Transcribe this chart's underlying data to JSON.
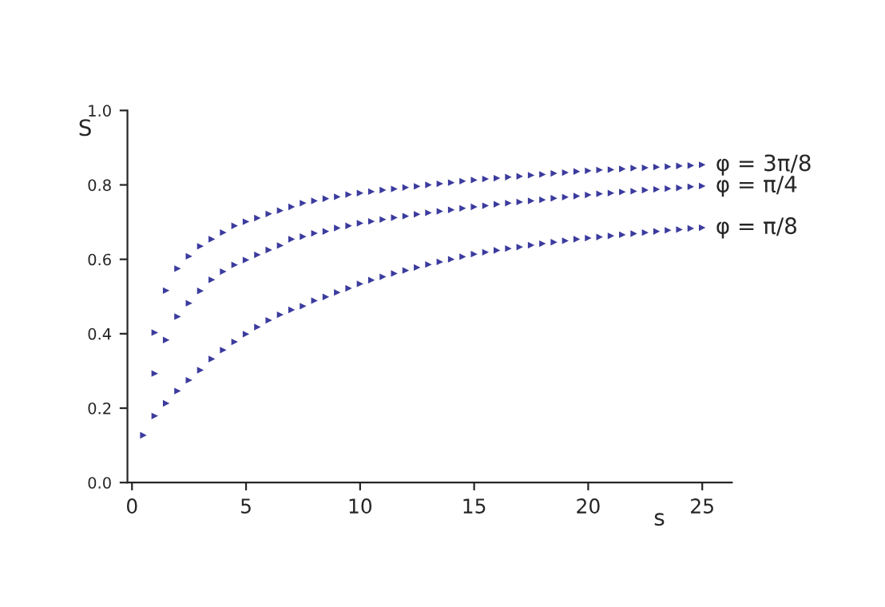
{
  "chart_data": {
    "type": "scatter",
    "xlabel": "s",
    "ylabel": "S",
    "marker": "triangle",
    "grid": false,
    "legend": false,
    "xlim": [
      -0.2,
      26.3
    ],
    "xticks": [
      0,
      5,
      10,
      15,
      20,
      25
    ],
    "ylim": [
      0,
      1.0
    ],
    "yticks": [
      {
        "value": 0,
        "label": "0.0"
      },
      {
        "value": 0.2,
        "label": "0.2"
      },
      {
        "value": 0.4,
        "label": "0.4"
      },
      {
        "value": 0.6,
        "label": "0.6"
      },
      {
        "value": 0.8,
        "label": "0.8"
      },
      {
        "value": 1.0,
        "label": "1.0"
      }
    ],
    "series": [
      {
        "name": "φ = 3π/8",
        "color": "#3b3b9e",
        "x": [
          1,
          1.5,
          2,
          2.5,
          3,
          3.5,
          4,
          4.5,
          5,
          5.5,
          6,
          6.5,
          7,
          7.5,
          8,
          8.5,
          9,
          9.5,
          10,
          10.5,
          11,
          11.5,
          12,
          12.5,
          13,
          13.5,
          14,
          14.5,
          15,
          15.5,
          16,
          16.5,
          17,
          17.5,
          18,
          18.5,
          19,
          19.5,
          20,
          20.5,
          21,
          21.5,
          22,
          22.5,
          23,
          23.5,
          24,
          24.5,
          25
        ],
        "values": [
          0.403,
          0.516,
          0.575,
          0.608,
          0.635,
          0.654,
          0.672,
          0.69,
          0.701,
          0.711,
          0.722,
          0.731,
          0.741,
          0.751,
          0.757,
          0.763,
          0.768,
          0.774,
          0.778,
          0.782,
          0.786,
          0.789,
          0.793,
          0.796,
          0.8,
          0.803,
          0.806,
          0.81,
          0.813,
          0.816,
          0.818,
          0.821,
          0.823,
          0.826,
          0.828,
          0.831,
          0.833,
          0.836,
          0.838,
          0.84,
          0.841,
          0.843,
          0.845,
          0.846,
          0.848,
          0.849,
          0.851,
          0.852,
          0.854
        ]
      },
      {
        "name": "φ = π/4",
        "color": "#3b3b9e",
        "x": [
          1,
          1.5,
          2,
          2.5,
          3,
          3.5,
          4,
          4.5,
          5,
          5.5,
          6,
          6.5,
          7,
          7.5,
          8,
          8.5,
          9,
          9.5,
          10,
          10.5,
          11,
          11.5,
          12,
          12.5,
          13,
          13.5,
          14,
          14.5,
          15,
          15.5,
          16,
          16.5,
          17,
          17.5,
          18,
          18.5,
          19,
          19.5,
          20,
          20.5,
          21,
          21.5,
          22,
          22.5,
          23,
          23.5,
          24,
          24.5,
          25
        ],
        "values": [
          0.293,
          0.383,
          0.446,
          0.482,
          0.515,
          0.545,
          0.567,
          0.585,
          0.598,
          0.612,
          0.625,
          0.637,
          0.654,
          0.661,
          0.67,
          0.675,
          0.684,
          0.69,
          0.697,
          0.702,
          0.707,
          0.712,
          0.716,
          0.721,
          0.725,
          0.729,
          0.733,
          0.737,
          0.741,
          0.744,
          0.748,
          0.751,
          0.754,
          0.757,
          0.76,
          0.764,
          0.767,
          0.77,
          0.773,
          0.776,
          0.778,
          0.781,
          0.783,
          0.786,
          0.788,
          0.79,
          0.792,
          0.795,
          0.797
        ]
      },
      {
        "name": "φ = π/8",
        "color": "#3b3b9e",
        "x": [
          0.5,
          1,
          1.5,
          2,
          2.5,
          3,
          3.5,
          4,
          4.5,
          5,
          5.5,
          6,
          6.5,
          7,
          7.5,
          8,
          8.5,
          9,
          9.5,
          10,
          10.5,
          11,
          11.5,
          12,
          12.5,
          13,
          13.5,
          14,
          14.5,
          15,
          15.5,
          16,
          16.5,
          17,
          17.5,
          18,
          18.5,
          19,
          19.5,
          20,
          20.5,
          21,
          21.5,
          22,
          22.5,
          23,
          23.5,
          24,
          24.5,
          25
        ],
        "values": [
          0.127,
          0.179,
          0.213,
          0.246,
          0.275,
          0.302,
          0.332,
          0.356,
          0.378,
          0.399,
          0.418,
          0.436,
          0.451,
          0.464,
          0.474,
          0.489,
          0.499,
          0.511,
          0.522,
          0.534,
          0.544,
          0.553,
          0.562,
          0.57,
          0.578,
          0.586,
          0.593,
          0.6,
          0.607,
          0.614,
          0.619,
          0.624,
          0.629,
          0.633,
          0.638,
          0.642,
          0.646,
          0.65,
          0.654,
          0.657,
          0.66,
          0.663,
          0.666,
          0.669,
          0.672,
          0.675,
          0.678,
          0.68,
          0.683,
          0.685
        ]
      }
    ]
  }
}
